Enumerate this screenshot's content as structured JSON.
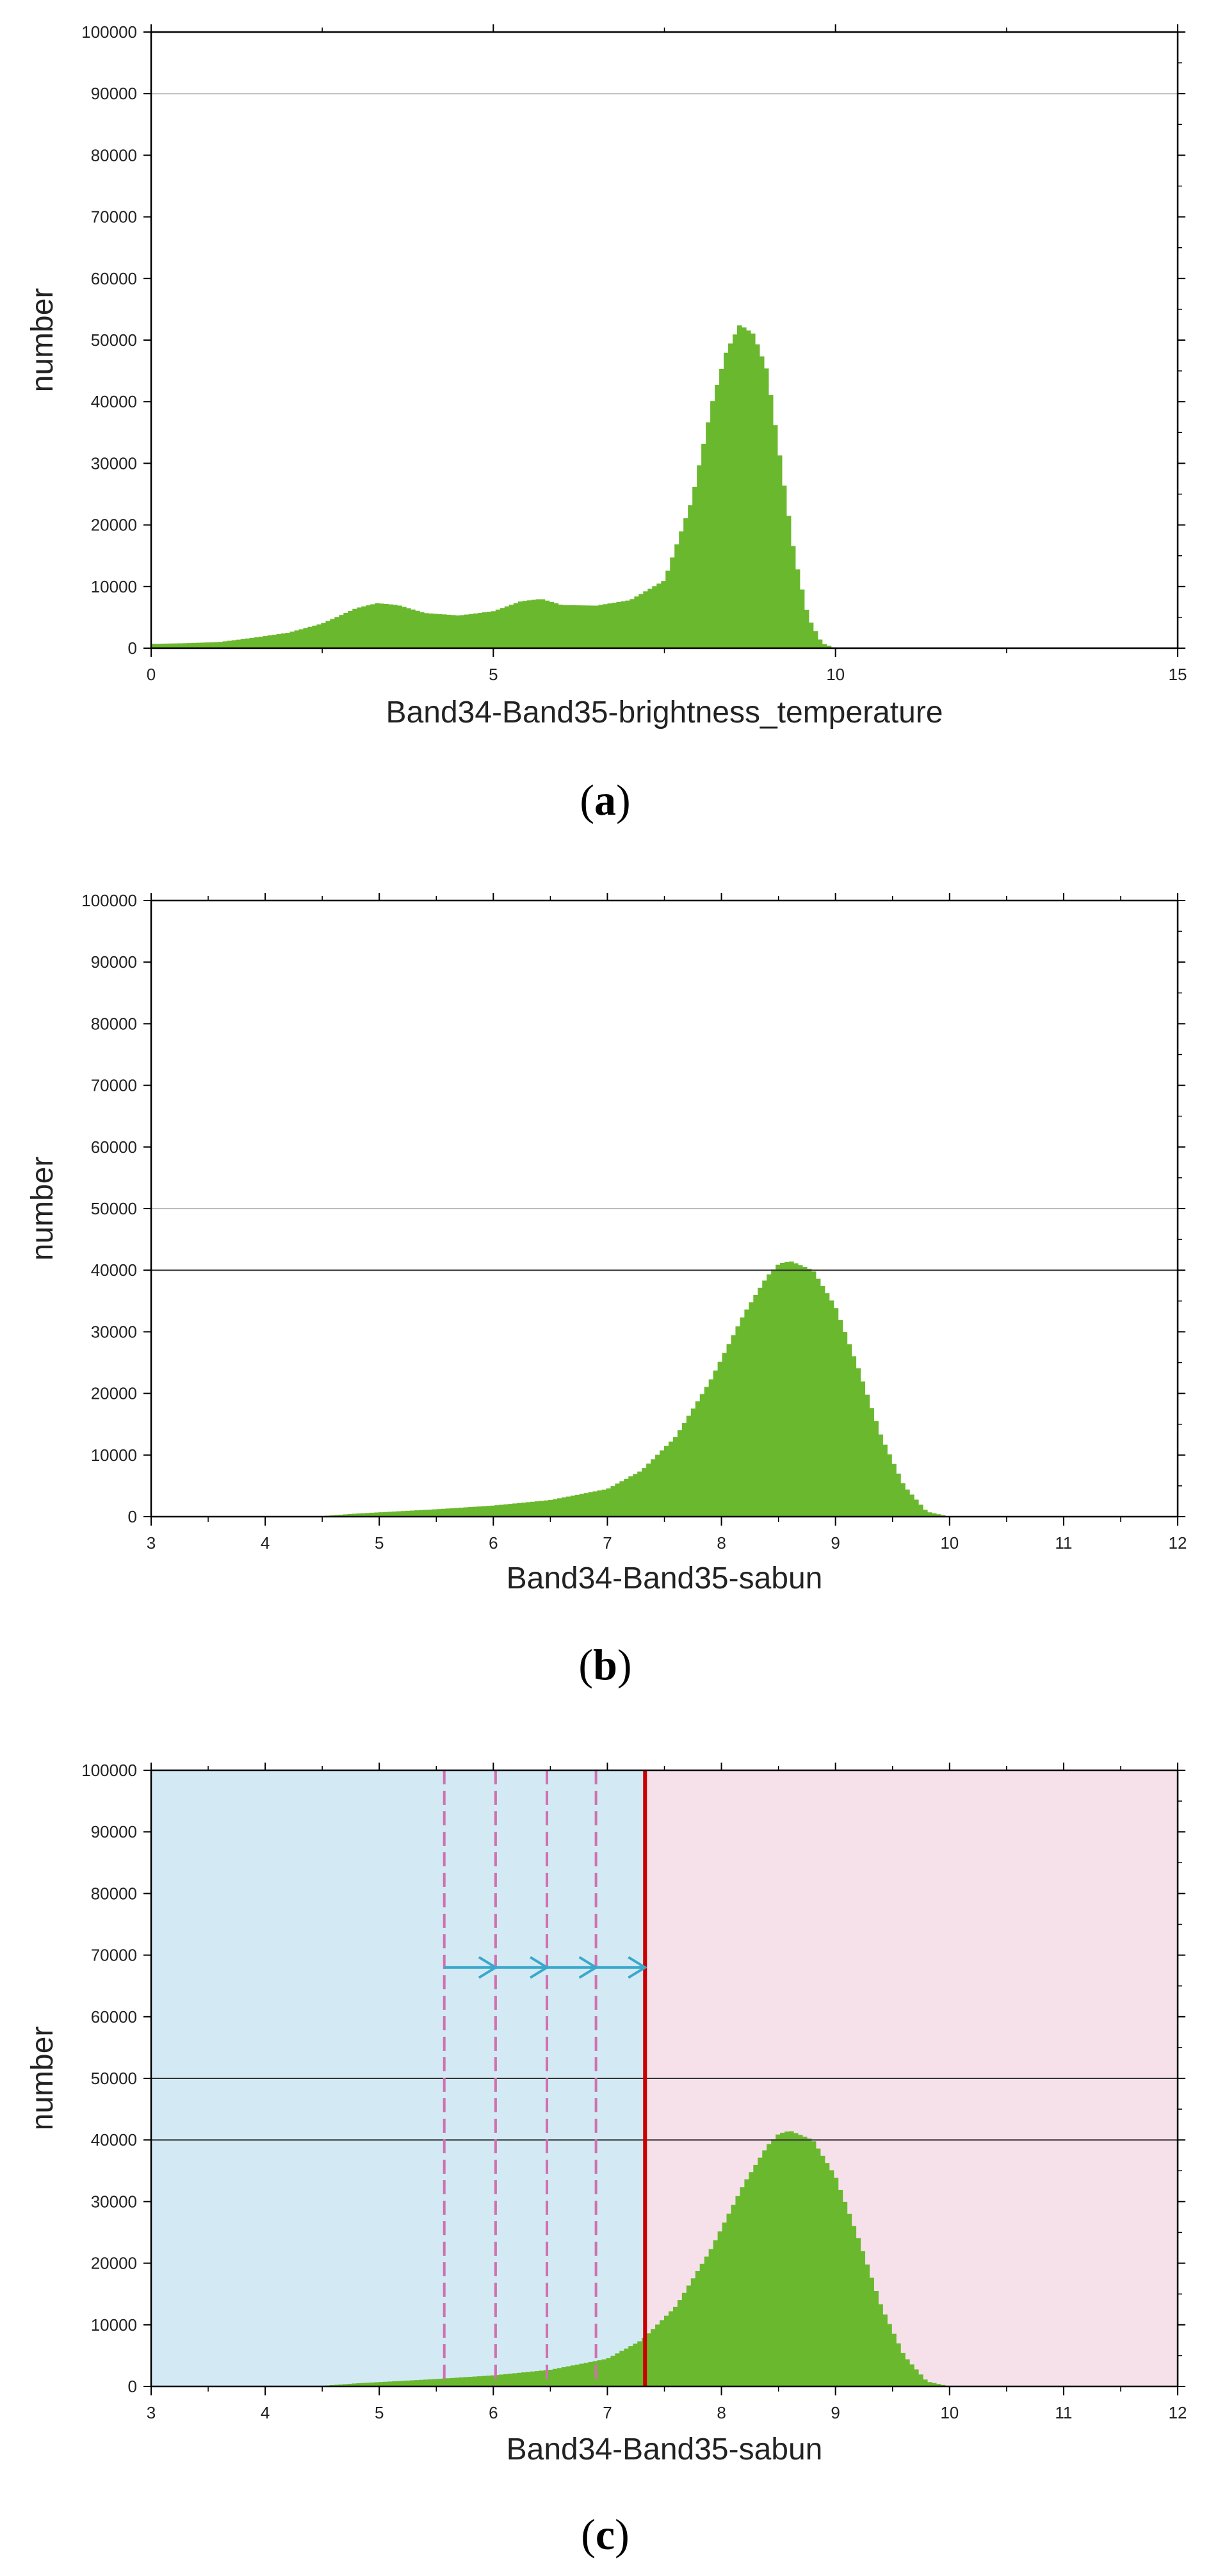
{
  "panels": [
    {
      "id": "a",
      "label": "a"
    },
    {
      "id": "b",
      "label": "b"
    },
    {
      "id": "c",
      "label": "c"
    }
  ],
  "colors": {
    "bars": "#6ab82e",
    "frame": "#000000",
    "gridline_light": "#bdbdbd",
    "gridline_dark": "#333333",
    "region_left": "#d3eaf5",
    "region_right": "#f6e0ea",
    "threshold_line": "#cc0000",
    "dashed_lines": "#d070b0",
    "arrow": "#3aa8cc"
  },
  "chart_data": [
    {
      "type": "bar",
      "panel": "a",
      "xlabel": "Band34-Band35-brightness_temperature",
      "ylabel": "number",
      "xlim": [
        0,
        15
      ],
      "ylim": [
        0,
        100000
      ],
      "xticks": [
        0,
        5,
        10,
        15
      ],
      "yticks": [
        0,
        10000,
        20000,
        30000,
        40000,
        50000,
        60000,
        70000,
        80000,
        90000,
        100000
      ],
      "hlines": [
        {
          "y": 90000,
          "style": "light"
        }
      ],
      "series": [
        {
          "x": [
            0.0,
            0.5,
            1.0,
            1.5,
            2.0,
            2.5,
            3.0,
            3.3,
            3.6,
            4.0,
            4.5,
            5.0,
            5.4,
            5.7,
            6.0,
            6.5,
            7.0,
            7.5,
            7.9,
            8.2,
            8.4,
            8.6,
            8.8,
            9.0,
            9.2,
            9.4,
            9.6,
            9.8,
            10.0
          ],
          "y": [
            700,
            800,
            1000,
            1700,
            2500,
            4000,
            6500,
            7300,
            7000,
            5700,
            5300,
            6000,
            7600,
            8000,
            7000,
            6900,
            7800,
            11000,
            24000,
            40000,
            48000,
            52500,
            51000,
            45000,
            30000,
            15000,
            5000,
            800,
            0
          ]
        }
      ]
    },
    {
      "type": "bar",
      "panel": "b",
      "xlabel": "Band34-Band35-sabun",
      "ylabel": "number",
      "xlim": [
        3,
        12
      ],
      "ylim": [
        0,
        100000
      ],
      "xticks": [
        3,
        4,
        5,
        6,
        7,
        8,
        9,
        10,
        11,
        12
      ],
      "yticks": [
        0,
        10000,
        20000,
        30000,
        40000,
        50000,
        60000,
        70000,
        80000,
        90000,
        100000
      ],
      "hlines": [
        {
          "y": 50000,
          "style": "light"
        },
        {
          "y": 40000,
          "style": "dark"
        }
      ],
      "series": [
        {
          "x": [
            3.0,
            4.0,
            4.5,
            4.8,
            5.0,
            5.5,
            6.0,
            6.5,
            7.0,
            7.3,
            7.6,
            7.9,
            8.2,
            8.4,
            8.5,
            8.6,
            8.8,
            9.0,
            9.2,
            9.4,
            9.6,
            9.8,
            10.0
          ],
          "y": [
            0,
            0,
            100,
            500,
            700,
            1200,
            1800,
            2700,
            4500,
            7500,
            13000,
            22000,
            33000,
            39000,
            41000,
            41500,
            40000,
            34000,
            24000,
            13000,
            5000,
            800,
            0
          ]
        }
      ]
    },
    {
      "type": "bar",
      "panel": "c",
      "xlabel": "Band34-Band35-sabun",
      "ylabel": "number",
      "xlim": [
        3,
        12
      ],
      "ylim": [
        0,
        100000
      ],
      "xticks": [
        3,
        4,
        5,
        6,
        7,
        8,
        9,
        10,
        11,
        12
      ],
      "yticks": [
        0,
        10000,
        20000,
        30000,
        40000,
        50000,
        60000,
        70000,
        80000,
        90000,
        100000
      ],
      "hlines": [
        {
          "y": 50000,
          "style": "dark"
        },
        {
          "y": 40000,
          "style": "dark"
        }
      ],
      "threshold": 7.33,
      "dashed_lines": [
        5.57,
        6.02,
        6.47,
        6.9
      ],
      "arrow": {
        "y": 68000,
        "from": 5.57,
        "to": 7.33,
        "heads": [
          6.02,
          6.47,
          6.9,
          7.33
        ]
      },
      "series": [
        {
          "x": [
            3.0,
            4.0,
            4.5,
            4.8,
            5.0,
            5.5,
            6.0,
            6.5,
            7.0,
            7.3,
            7.6,
            7.9,
            8.2,
            8.4,
            8.5,
            8.6,
            8.8,
            9.0,
            9.2,
            9.4,
            9.6,
            9.8,
            10.0
          ],
          "y": [
            0,
            0,
            100,
            500,
            700,
            1200,
            1800,
            2700,
            4500,
            7500,
            13000,
            22000,
            33000,
            39000,
            41000,
            41500,
            40000,
            34000,
            24000,
            13000,
            5000,
            800,
            0
          ]
        }
      ]
    }
  ]
}
